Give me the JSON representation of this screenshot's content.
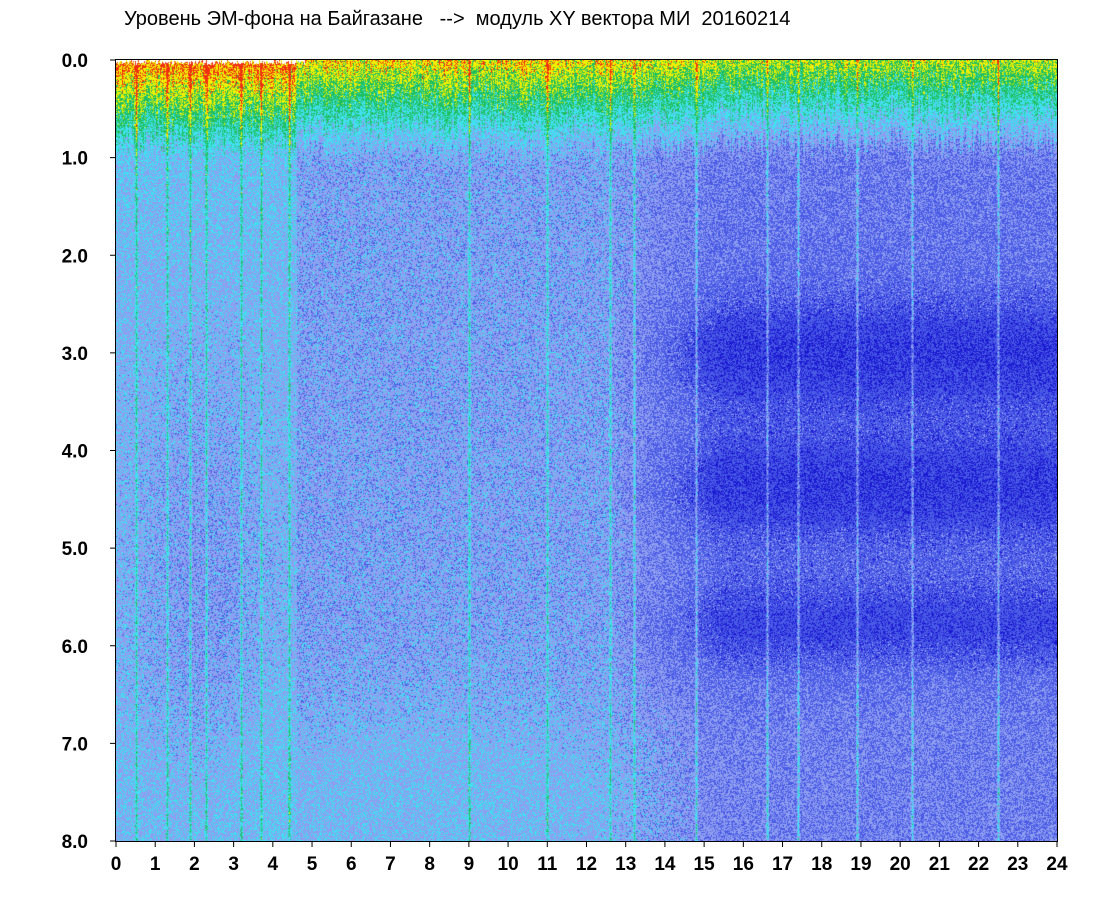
{
  "title": "Уровень ЭМ-фона на Байгазане   -->  модуль XY вектора МИ  20160214",
  "chart_data": {
    "type": "heatmap",
    "title": "Уровень ЭМ-фона на Байгазане   -->  модуль XY вектора МИ  20160214",
    "xlabel": "",
    "ylabel": "",
    "xlim": [
      0,
      24
    ],
    "ylim": [
      0.0,
      8.0
    ],
    "y_inverted": true,
    "grid": false,
    "legend": "none",
    "x_ticks": [
      "0",
      "1",
      "2",
      "3",
      "4",
      "5",
      "6",
      "7",
      "8",
      "9",
      "10",
      "11",
      "12",
      "13",
      "14",
      "15",
      "16",
      "17",
      "18",
      "19",
      "20",
      "21",
      "22",
      "23",
      "24"
    ],
    "y_ticks": [
      "0.0",
      "1.0",
      "2.0",
      "3.0",
      "4.0",
      "5.0",
      "6.0",
      "7.0",
      "8.0"
    ],
    "colormap": [
      "#1a1ad2",
      "#4a5ae6",
      "#8e9ef0",
      "#40e0f0",
      "#20c060",
      "#f0f000",
      "#f03010"
    ],
    "bright_band_y_range": [
      0.0,
      0.8
    ],
    "dark_bands_y": [
      3.0,
      4.4,
      5.8
    ],
    "vertical_streaks_x": [
      0.5,
      1.3,
      1.9,
      2.3,
      3.2,
      3.7,
      4.4,
      9.0,
      11.0,
      12.6,
      13.2,
      14.8,
      16.6,
      17.4,
      18.9,
      20.3,
      22.5
    ]
  }
}
